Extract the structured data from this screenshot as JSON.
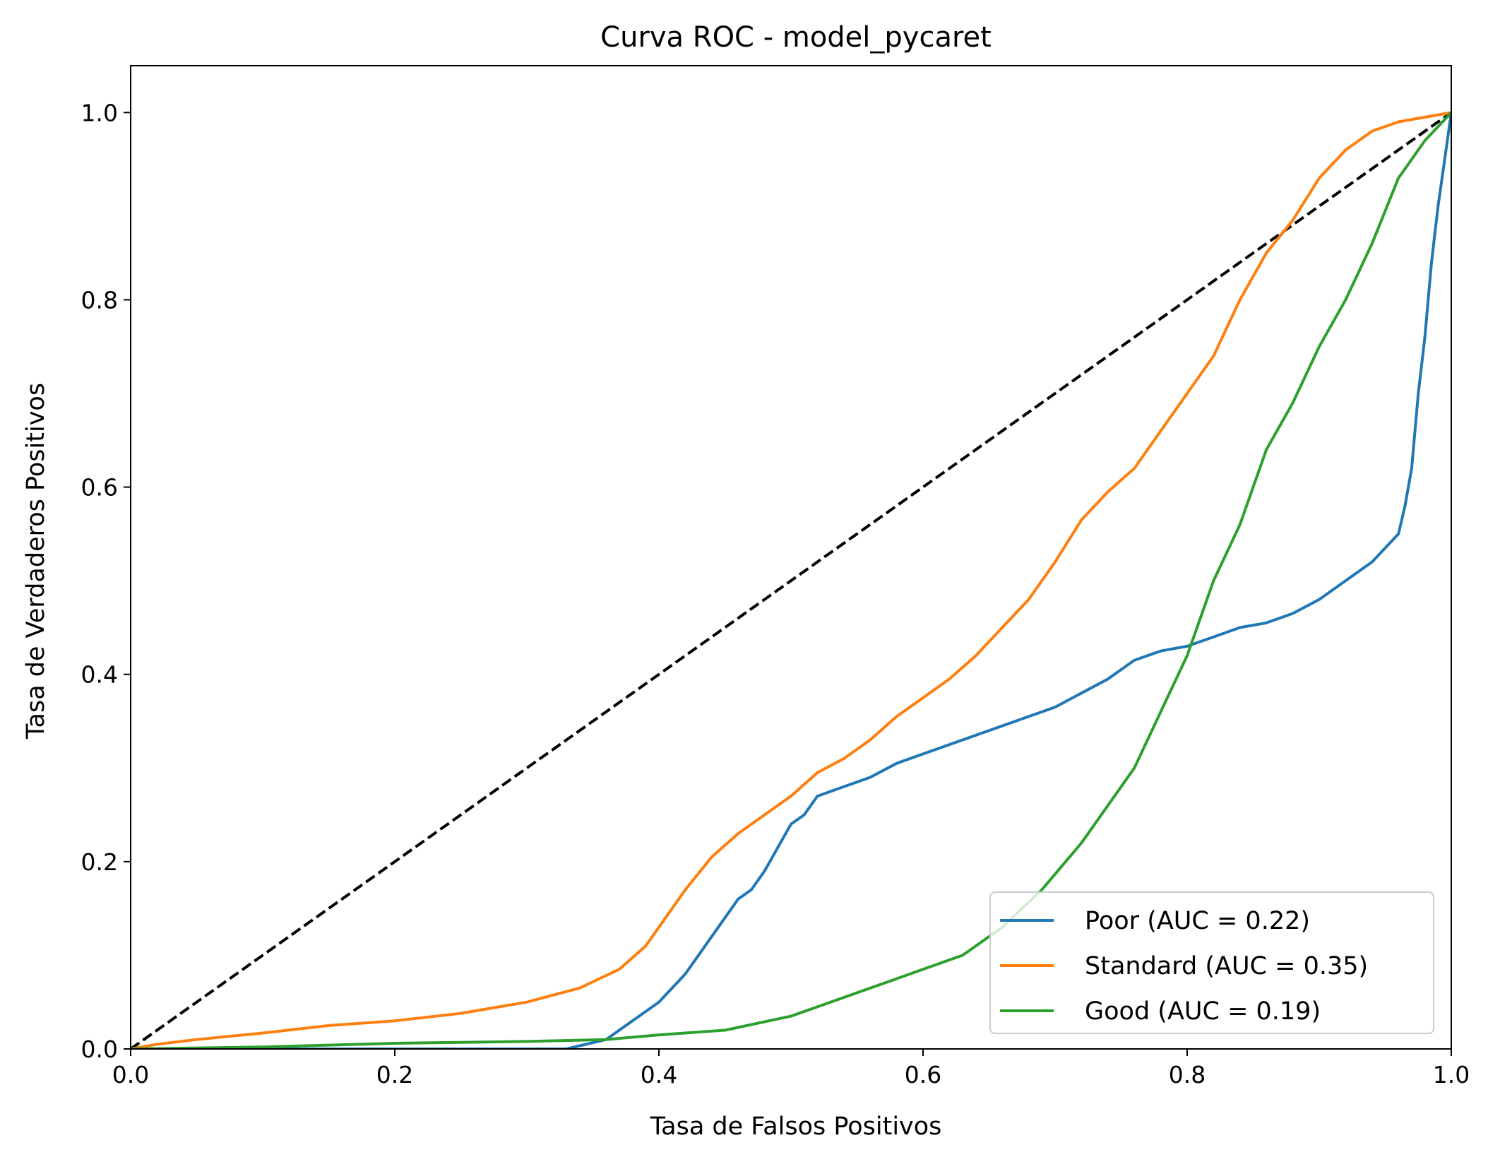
{
  "chart_data": {
    "type": "line",
    "title": "Curva ROC - model_pycaret",
    "xlabel": "Tasa de Falsos Positivos",
    "ylabel": "Tasa de Verdaderos Positivos",
    "xlim": [
      0.0,
      1.0
    ],
    "ylim": [
      0.0,
      1.05
    ],
    "xticks": [
      {
        "value": 0.0,
        "label": "0.0"
      },
      {
        "value": 0.2,
        "label": "0.2"
      },
      {
        "value": 0.4,
        "label": "0.4"
      },
      {
        "value": 0.6,
        "label": "0.6"
      },
      {
        "value": 0.8,
        "label": "0.8"
      },
      {
        "value": 1.0,
        "label": "1.0"
      }
    ],
    "yticks": [
      {
        "value": 0.0,
        "label": "0.0"
      },
      {
        "value": 0.2,
        "label": "0.2"
      },
      {
        "value": 0.4,
        "label": "0.4"
      },
      {
        "value": 0.6,
        "label": "0.6"
      },
      {
        "value": 0.8,
        "label": "0.8"
      },
      {
        "value": 1.0,
        "label": "1.0"
      }
    ],
    "grid": false,
    "legend_position": "bottom-right",
    "reference_line": {
      "x": [
        0.0,
        1.0
      ],
      "y": [
        0.0,
        1.0
      ],
      "color": "#000000",
      "style": "dashed"
    },
    "series": [
      {
        "name": "Poor (AUC = 0.22)",
        "color": "#1f77b4",
        "x": [
          0.0,
          0.1,
          0.2,
          0.3,
          0.33,
          0.36,
          0.38,
          0.4,
          0.42,
          0.44,
          0.46,
          0.47,
          0.48,
          0.5,
          0.51,
          0.52,
          0.54,
          0.56,
          0.58,
          0.6,
          0.62,
          0.64,
          0.66,
          0.68,
          0.7,
          0.72,
          0.74,
          0.76,
          0.78,
          0.8,
          0.82,
          0.84,
          0.86,
          0.88,
          0.9,
          0.92,
          0.94,
          0.96,
          0.965,
          0.97,
          0.975,
          0.98,
          0.985,
          0.99,
          0.995,
          1.0
        ],
        "y": [
          0.0,
          0.0,
          0.0,
          0.0,
          0.0,
          0.01,
          0.03,
          0.05,
          0.08,
          0.12,
          0.16,
          0.17,
          0.19,
          0.24,
          0.25,
          0.27,
          0.28,
          0.29,
          0.305,
          0.315,
          0.325,
          0.335,
          0.345,
          0.355,
          0.365,
          0.38,
          0.395,
          0.415,
          0.425,
          0.43,
          0.44,
          0.45,
          0.455,
          0.465,
          0.48,
          0.5,
          0.52,
          0.55,
          0.58,
          0.62,
          0.7,
          0.76,
          0.84,
          0.9,
          0.95,
          1.0
        ]
      },
      {
        "name": "Standard (AUC = 0.35)",
        "color": "#ff7f0e",
        "x": [
          0.0,
          0.02,
          0.05,
          0.1,
          0.15,
          0.2,
          0.25,
          0.3,
          0.34,
          0.37,
          0.39,
          0.4,
          0.42,
          0.44,
          0.46,
          0.48,
          0.5,
          0.52,
          0.54,
          0.56,
          0.58,
          0.6,
          0.62,
          0.64,
          0.66,
          0.68,
          0.7,
          0.72,
          0.74,
          0.76,
          0.78,
          0.8,
          0.82,
          0.84,
          0.86,
          0.88,
          0.9,
          0.92,
          0.94,
          0.96,
          0.98,
          1.0
        ],
        "y": [
          0.0,
          0.005,
          0.01,
          0.017,
          0.025,
          0.03,
          0.038,
          0.05,
          0.065,
          0.085,
          0.11,
          0.13,
          0.17,
          0.205,
          0.23,
          0.25,
          0.27,
          0.295,
          0.31,
          0.33,
          0.355,
          0.375,
          0.395,
          0.42,
          0.45,
          0.48,
          0.52,
          0.565,
          0.595,
          0.62,
          0.66,
          0.7,
          0.74,
          0.8,
          0.85,
          0.885,
          0.93,
          0.96,
          0.98,
          0.99,
          0.995,
          1.0
        ]
      },
      {
        "name": "Good (AUC = 0.19)",
        "color": "#2ca02c",
        "x": [
          0.0,
          0.1,
          0.2,
          0.3,
          0.36,
          0.4,
          0.45,
          0.5,
          0.55,
          0.6,
          0.63,
          0.66,
          0.69,
          0.72,
          0.74,
          0.76,
          0.78,
          0.8,
          0.82,
          0.84,
          0.86,
          0.88,
          0.9,
          0.92,
          0.94,
          0.96,
          0.98,
          1.0
        ],
        "y": [
          0.0,
          0.002,
          0.006,
          0.008,
          0.01,
          0.015,
          0.02,
          0.035,
          0.06,
          0.085,
          0.1,
          0.13,
          0.17,
          0.22,
          0.26,
          0.3,
          0.36,
          0.42,
          0.5,
          0.56,
          0.64,
          0.69,
          0.75,
          0.8,
          0.86,
          0.93,
          0.97,
          1.0
        ]
      }
    ]
  }
}
